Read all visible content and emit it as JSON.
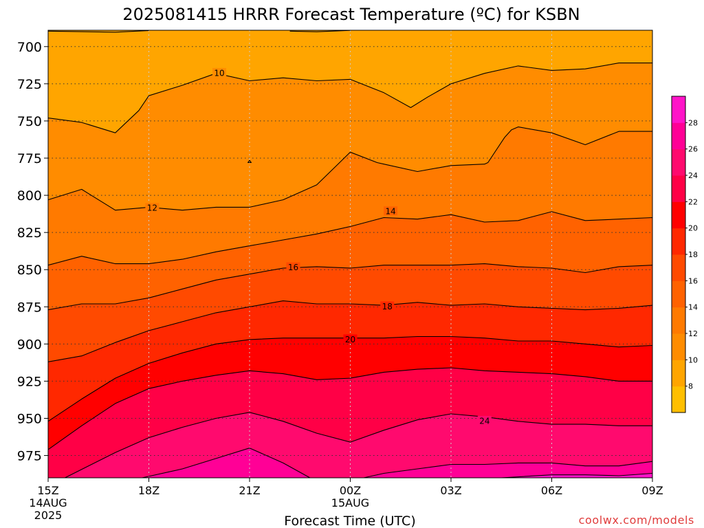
{
  "chart_data": {
    "type": "contour",
    "title": "2025081415 HRRR Forecast Temperature (ºC) for KSBN",
    "xlabel": "Forecast Time (UTC)",
    "credit": "coolwx.com/models",
    "x_range": [
      0,
      18
    ],
    "x_unit": "hours from 15Z 14AUG 2025",
    "x_ticks": [
      {
        "x": 0,
        "label": "15Z",
        "date": "14AUG",
        "year": "2025"
      },
      {
        "x": 3,
        "label": "18Z"
      },
      {
        "x": 6,
        "label": "21Z"
      },
      {
        "x": 9,
        "label": "00Z",
        "date": "15AUG"
      },
      {
        "x": 12,
        "label": "03Z"
      },
      {
        "x": 15,
        "label": "06Z"
      },
      {
        "x": 18,
        "label": "09Z"
      }
    ],
    "ylim": [
      990,
      689
    ],
    "y_ticks": [
      {
        "y": 700,
        "label": "700"
      },
      {
        "y": 725,
        "label": "725"
      },
      {
        "y": 750,
        "label": "750"
      },
      {
        "y": 775,
        "label": "775"
      },
      {
        "y": 800,
        "label": "800"
      },
      {
        "y": 825,
        "label": "825"
      },
      {
        "y": 850,
        "label": "850"
      },
      {
        "y": 875,
        "label": "875"
      },
      {
        "y": 900,
        "label": "900"
      },
      {
        "y": 925,
        "label": "925"
      },
      {
        "y": 950,
        "label": "950"
      },
      {
        "y": 975,
        "label": "975"
      }
    ],
    "grid": "dotted",
    "ground_color": "#a0522d",
    "fill_colors": [
      {
        "t": 8,
        "color": "#ffa500"
      },
      {
        "t": 10,
        "color": "#ff8c00"
      },
      {
        "t": 12,
        "color": "#ff7a00"
      },
      {
        "t": 14,
        "color": "#ff6200"
      },
      {
        "t": 16,
        "color": "#ff4a00"
      },
      {
        "t": 18,
        "color": "#ff2800"
      },
      {
        "t": 20,
        "color": "#ff0000"
      },
      {
        "t": 22,
        "color": "#ff0046"
      },
      {
        "t": 24,
        "color": "#ff0a6e"
      },
      {
        "t": 26,
        "color": "#ff0096"
      },
      {
        "t": 28,
        "color": "#ff14c8"
      }
    ],
    "colorbar": {
      "colors": [
        "#ffbf00",
        "#ffa500",
        "#ff8c00",
        "#ff7a00",
        "#ff6200",
        "#ff4a00",
        "#ff2800",
        "#ff0000",
        "#ff0046",
        "#ff0a6e",
        "#ff0096",
        "#ff14c8"
      ],
      "tick_labels": [
        "8",
        "10",
        "12",
        "14",
        "16",
        "18",
        "20",
        "22",
        "24",
        "26",
        "28"
      ]
    },
    "contours": [
      {
        "t": 8,
        "label": "",
        "points": [
          [
            0,
            689.6
          ],
          [
            2,
            690.3
          ],
          [
            3,
            689.2
          ]
        ]
      },
      {
        "t": 8,
        "label": "",
        "points": [
          [
            7.2,
            689.6
          ],
          [
            8,
            690.0
          ],
          [
            9,
            689.1
          ]
        ]
      },
      {
        "t": 10,
        "label": "10",
        "label_at": [
          5.1,
          717.6
        ],
        "points": [
          [
            0,
            748
          ],
          [
            1,
            751
          ],
          [
            2,
            758
          ],
          [
            2.7,
            743
          ],
          [
            3,
            733
          ],
          [
            4,
            726
          ],
          [
            5,
            718
          ],
          [
            6,
            723
          ],
          [
            7,
            721
          ],
          [
            8,
            723
          ],
          [
            9,
            722
          ],
          [
            10,
            731
          ],
          [
            10.8,
            741
          ],
          [
            11.3,
            734
          ],
          [
            12,
            725
          ],
          [
            13,
            718
          ],
          [
            14,
            713
          ],
          [
            15,
            716
          ],
          [
            16,
            715
          ],
          [
            17,
            711
          ],
          [
            18,
            711
          ]
        ]
      },
      {
        "t": 12,
        "label": "12",
        "label_at": [
          3.1,
          808.4
        ],
        "points": [
          [
            0,
            803
          ],
          [
            1,
            796
          ],
          [
            2,
            810
          ],
          [
            3,
            808
          ],
          [
            4,
            810
          ],
          [
            5,
            808
          ],
          [
            6,
            808
          ],
          [
            7,
            803
          ],
          [
            8,
            793
          ],
          [
            8.5,
            782
          ],
          [
            9,
            771
          ],
          [
            9.8,
            778
          ],
          [
            10,
            779
          ],
          [
            11,
            784
          ],
          [
            12,
            780
          ],
          [
            13,
            779
          ],
          [
            13.1,
            778
          ],
          [
            13.6,
            761
          ],
          [
            13.8,
            756
          ],
          [
            14,
            754
          ],
          [
            15,
            758
          ],
          [
            16,
            766
          ],
          [
            17,
            757
          ],
          [
            18,
            757
          ]
        ]
      },
      {
        "t": 12,
        "label": "",
        "points": [
          [
            6,
            776.5
          ],
          [
            6.05,
            778
          ],
          [
            5.95,
            778
          ],
          [
            6,
            776.5
          ]
        ]
      },
      {
        "t": 14,
        "label": "14",
        "label_at": [
          10.2,
          810.7
        ],
        "points": [
          [
            0,
            847
          ],
          [
            1,
            841
          ],
          [
            2,
            846
          ],
          [
            3,
            846
          ],
          [
            4,
            843
          ],
          [
            5,
            838
          ],
          [
            6,
            834
          ],
          [
            7,
            830
          ],
          [
            8,
            826
          ],
          [
            9,
            821
          ],
          [
            10,
            815
          ],
          [
            11,
            816
          ],
          [
            12,
            813
          ],
          [
            13,
            818
          ],
          [
            14,
            817
          ],
          [
            15,
            811
          ],
          [
            16,
            817
          ],
          [
            17,
            816
          ],
          [
            18,
            815
          ]
        ]
      },
      {
        "t": 16,
        "label": "16",
        "label_at": [
          7.3,
          848.3
        ],
        "points": [
          [
            0,
            877
          ],
          [
            1,
            873
          ],
          [
            2,
            873
          ],
          [
            3,
            869
          ],
          [
            4,
            863
          ],
          [
            5,
            857
          ],
          [
            6,
            853
          ],
          [
            7,
            849
          ],
          [
            8,
            848
          ],
          [
            9,
            849
          ],
          [
            10,
            847
          ],
          [
            11,
            847
          ],
          [
            12,
            847
          ],
          [
            13,
            846
          ],
          [
            14,
            848
          ],
          [
            15,
            849
          ],
          [
            16,
            852
          ],
          [
            17,
            848
          ],
          [
            18,
            847
          ]
        ]
      },
      {
        "t": 18,
        "label": "18",
        "label_at": [
          10.1,
          874.6
        ],
        "points": [
          [
            0,
            912
          ],
          [
            1,
            908
          ],
          [
            2,
            899
          ],
          [
            3,
            891
          ],
          [
            4,
            885
          ],
          [
            5,
            879
          ],
          [
            6,
            875
          ],
          [
            7,
            871
          ],
          [
            8,
            873
          ],
          [
            9,
            873
          ],
          [
            10,
            874
          ],
          [
            11,
            872
          ],
          [
            12,
            874
          ],
          [
            13,
            873
          ],
          [
            14,
            875
          ],
          [
            15,
            876
          ],
          [
            16,
            877
          ],
          [
            17,
            876
          ],
          [
            18,
            874
          ]
        ]
      },
      {
        "t": 20,
        "label": "20",
        "label_at": [
          9.0,
          896.8
        ],
        "points": [
          [
            0,
            952
          ],
          [
            1,
            937
          ],
          [
            2,
            923
          ],
          [
            3,
            913
          ],
          [
            4,
            906
          ],
          [
            5,
            900
          ],
          [
            6,
            897
          ],
          [
            7,
            896
          ],
          [
            8,
            896
          ],
          [
            9,
            896
          ],
          [
            10,
            896
          ],
          [
            11,
            895
          ],
          [
            12,
            895
          ],
          [
            13,
            896
          ],
          [
            14,
            898
          ],
          [
            15,
            898
          ],
          [
            16,
            900
          ],
          [
            17,
            902
          ],
          [
            18,
            901
          ]
        ]
      },
      {
        "t": 22,
        "label": "",
        "points": [
          [
            0,
            971
          ],
          [
            1,
            955
          ],
          [
            2,
            940
          ],
          [
            3,
            930
          ],
          [
            4,
            925
          ],
          [
            5,
            921
          ],
          [
            6,
            918
          ],
          [
            7,
            920
          ],
          [
            8,
            924
          ],
          [
            9,
            923
          ],
          [
            10,
            919
          ],
          [
            11,
            917
          ],
          [
            12,
            916
          ],
          [
            13,
            918
          ],
          [
            14,
            919
          ],
          [
            15,
            920
          ],
          [
            16,
            922
          ],
          [
            17,
            925
          ],
          [
            18,
            925
          ]
        ]
      },
      {
        "t": 24,
        "label": "24",
        "label_at": [
          13.0,
          951.6
        ],
        "points": [
          [
            0.5,
            990
          ],
          [
            2,
            973
          ],
          [
            3,
            963
          ],
          [
            4,
            956
          ],
          [
            5,
            950
          ],
          [
            6,
            946
          ],
          [
            7,
            952
          ],
          [
            8,
            960
          ],
          [
            9,
            966
          ],
          [
            10,
            958
          ],
          [
            11,
            951
          ],
          [
            12,
            947
          ],
          [
            13,
            949
          ],
          [
            14,
            952
          ],
          [
            15,
            954
          ],
          [
            16,
            954
          ],
          [
            17,
            955
          ],
          [
            18,
            955
          ]
        ]
      },
      {
        "t": 26,
        "label": "",
        "points": [
          [
            2.8,
            990
          ],
          [
            4,
            984
          ],
          [
            5,
            977
          ],
          [
            6,
            970
          ],
          [
            7,
            980
          ],
          [
            7.8,
            990
          ]
        ]
      },
      {
        "t": 26,
        "label": "",
        "points": [
          [
            9.4,
            990
          ],
          [
            10,
            987
          ],
          [
            11,
            984
          ],
          [
            12,
            981
          ],
          [
            13,
            981
          ],
          [
            14,
            980
          ],
          [
            15,
            980
          ],
          [
            16,
            982
          ],
          [
            17,
            982
          ],
          [
            18,
            979
          ]
        ]
      },
      {
        "t": 28,
        "label": "",
        "points": [
          [
            13.5,
            990
          ],
          [
            15,
            988
          ],
          [
            16,
            988
          ],
          [
            17,
            988.6
          ],
          [
            18,
            987
          ]
        ]
      }
    ]
  }
}
